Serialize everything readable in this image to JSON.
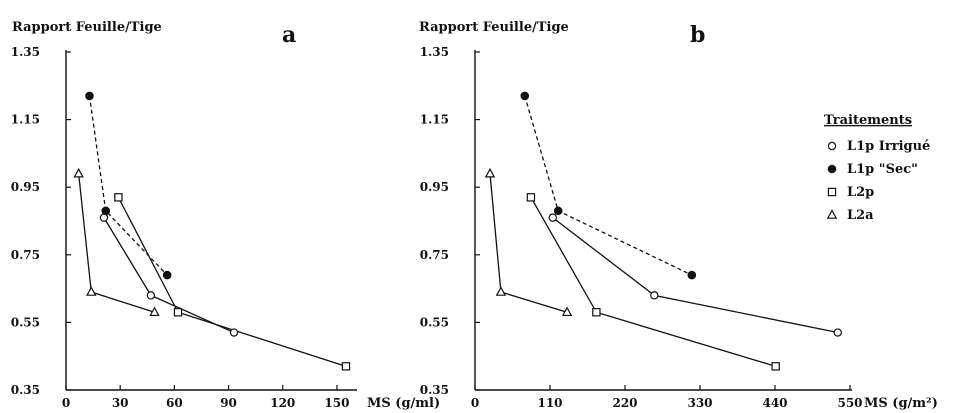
{
  "chart_data": [
    {
      "type": "line",
      "panel_label": "a",
      "ylabel": "Rapport Feuille/Tige",
      "xlabel": "MS (g/ml)",
      "xlim": [
        0,
        160
      ],
      "ylim": [
        0.35,
        1.35
      ],
      "xticks": [
        0,
        30,
        60,
        90,
        120,
        150
      ],
      "yticks": [
        "0.35",
        "0.55",
        "0.75",
        "0.95",
        "1.15",
        "1.35"
      ],
      "series": [
        {
          "name": "L1p Irrigué",
          "marker": "circle-open",
          "dashed": false,
          "points": [
            [
              21,
              0.86
            ],
            [
              47,
              0.63
            ],
            [
              93,
              0.52
            ]
          ]
        },
        {
          "name": "L1p \"Sec\"",
          "marker": "circle-filled",
          "dashed": true,
          "points": [
            [
              13,
              1.22
            ],
            [
              22,
              0.88
            ],
            [
              56,
              0.69
            ]
          ]
        },
        {
          "name": "L2p",
          "marker": "square-open",
          "dashed": false,
          "points": [
            [
              29,
              0.92
            ],
            [
              62,
              0.58
            ],
            [
              155,
              0.42
            ]
          ]
        },
        {
          "name": "L2a",
          "marker": "triangle",
          "dashed": false,
          "points": [
            [
              7,
              0.99
            ],
            [
              14,
              0.64
            ],
            [
              49,
              0.58
            ]
          ]
        }
      ]
    },
    {
      "type": "line",
      "panel_label": "b",
      "ylabel": "Rapport Feuille/Tige",
      "xlabel": "MS (g/m²)",
      "xlim": [
        0,
        550
      ],
      "ylim": [
        0.35,
        1.35
      ],
      "xticks": [
        0,
        110,
        220,
        330,
        440,
        550
      ],
      "yticks": [
        "0.35",
        "0.55",
        "0.75",
        "0.95",
        "1.15",
        "1.35"
      ],
      "series": [
        {
          "name": "L1p Irrigué",
          "marker": "circle-open",
          "dashed": false,
          "points": [
            [
              114,
              0.86
            ],
            [
              263,
              0.63
            ],
            [
              532,
              0.52
            ]
          ]
        },
        {
          "name": "L1p \"Sec\"",
          "marker": "circle-filled",
          "dashed": true,
          "points": [
            [
              73,
              1.22
            ],
            [
              122,
              0.88
            ],
            [
              318,
              0.69
            ]
          ]
        },
        {
          "name": "L2p",
          "marker": "square-open",
          "dashed": false,
          "points": [
            [
              82,
              0.92
            ],
            [
              178,
              0.58
            ],
            [
              441,
              0.42
            ]
          ]
        },
        {
          "name": "L2a",
          "marker": "triangle",
          "dashed": false,
          "points": [
            [
              22,
              0.99
            ],
            [
              38,
              0.64
            ],
            [
              135,
              0.58
            ]
          ]
        }
      ]
    }
  ],
  "legend": {
    "title": "Traitements",
    "items": [
      {
        "marker": "circle-open",
        "label": "L1p Irrigué"
      },
      {
        "marker": "circle-filled",
        "label": "L1p \"Sec\""
      },
      {
        "marker": "square-open",
        "label": "L2p"
      },
      {
        "marker": "triangle",
        "label": "L2a"
      }
    ]
  }
}
